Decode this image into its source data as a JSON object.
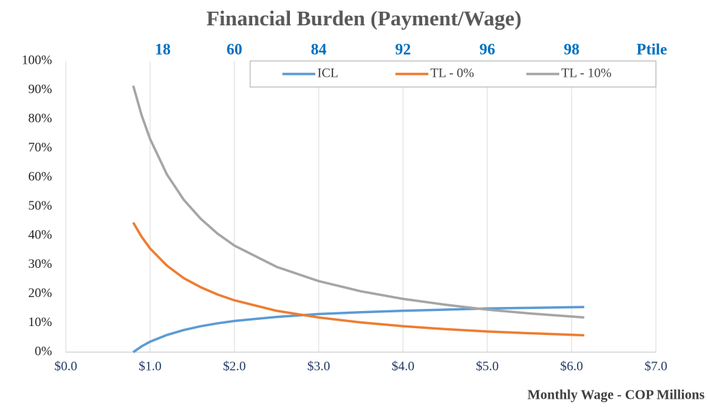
{
  "chart_data": {
    "type": "line",
    "title": "Financial Burden (Payment/Wage)",
    "x_label": "Monthly Wage - COP Millions",
    "x2_label": "Ptile",
    "x": [
      0.8,
      0.9,
      1.0,
      1.2,
      1.4,
      1.6,
      1.8,
      2.0,
      2.5,
      3.0,
      3.5,
      4.0,
      4.5,
      5.0,
      5.5,
      6.15
    ],
    "series": [
      {
        "name": "ICL",
        "color": "#5b9bd5",
        "values": [
          0,
          2.0,
          3.6,
          5.9,
          7.6,
          8.9,
          9.9,
          10.7,
          12.1,
          13.1,
          13.7,
          14.2,
          14.6,
          15.0,
          15.2,
          15.5
        ]
      },
      {
        "name": "TL - 0%",
        "color": "#ed7d31",
        "values": [
          44.5,
          39.6,
          35.6,
          29.7,
          25.4,
          22.3,
          19.8,
          17.8,
          14.2,
          11.9,
          10.2,
          8.9,
          7.9,
          7.1,
          6.5,
          5.8
        ]
      },
      {
        "name": "TL - 10%",
        "color": "#a5a5a5",
        "values": [
          91.5,
          81.3,
          73.2,
          61.0,
          52.3,
          45.8,
          40.7,
          36.6,
          29.3,
          24.4,
          20.9,
          18.3,
          16.3,
          14.6,
          13.3,
          11.9
        ]
      }
    ],
    "xlim": [
      0,
      7
    ],
    "xticks": [
      {
        "value": 0,
        "label": "$0.0"
      },
      {
        "value": 1,
        "label": "$1.0"
      },
      {
        "value": 2,
        "label": "$2.0"
      },
      {
        "value": 3,
        "label": "$3.0"
      },
      {
        "value": 4,
        "label": "$4.0"
      },
      {
        "value": 5,
        "label": "$5.0"
      },
      {
        "value": 6,
        "label": "$6.0"
      },
      {
        "value": 7,
        "label": "$7.0"
      }
    ],
    "x2ticks": [
      {
        "value": 1.15,
        "label": "18"
      },
      {
        "value": 2,
        "label": "60"
      },
      {
        "value": 3,
        "label": "84"
      },
      {
        "value": 4,
        "label": "92"
      },
      {
        "value": 5,
        "label": "96"
      },
      {
        "value": 6,
        "label": "98"
      }
    ],
    "ylim": [
      0,
      100
    ],
    "yticks": [
      {
        "value": 0,
        "label": "0%"
      },
      {
        "value": 10,
        "label": "10%"
      },
      {
        "value": 20,
        "label": "20%"
      },
      {
        "value": 30,
        "label": "30%"
      },
      {
        "value": 40,
        "label": "40%"
      },
      {
        "value": 50,
        "label": "50%"
      },
      {
        "value": 60,
        "label": "60%"
      },
      {
        "value": 70,
        "label": "70%"
      },
      {
        "value": 80,
        "label": "80%"
      },
      {
        "value": 90,
        "label": "90%"
      },
      {
        "value": 100,
        "label": "100%"
      }
    ],
    "grid": "x",
    "legend": "top-right"
  }
}
